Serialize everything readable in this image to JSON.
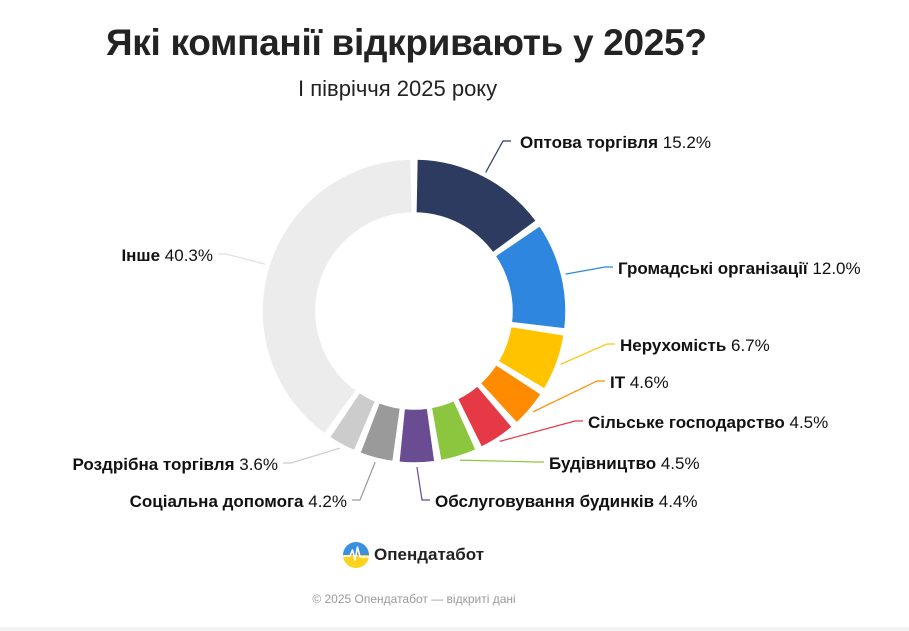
{
  "header": {
    "title": "Які компанії відкривають у 2025?",
    "subtitle": "І півріччя 2025 року"
  },
  "chart_data": {
    "type": "pie",
    "variant": "donut",
    "unit": "%",
    "slices": [
      {
        "label": "Оптова торгівля",
        "value": 15.2,
        "display": "15.2%",
        "color": "#2c3b5f"
      },
      {
        "label": "Громадські організації",
        "value": 12.0,
        "display": "12.0%",
        "color": "#2e86de"
      },
      {
        "label": "Нерухомість",
        "value": 6.7,
        "display": "6.7%",
        "color": "#ffc300"
      },
      {
        "label": "ІТ",
        "value": 4.6,
        "display": "4.6%",
        "color": "#ff8c00"
      },
      {
        "label": "Сільське господарство",
        "value": 4.5,
        "display": "4.5%",
        "color": "#e63946"
      },
      {
        "label": "Будівництво",
        "value": 4.5,
        "display": "4.5%",
        "color": "#8cc63f"
      },
      {
        "label": "Обслуговування будинків",
        "value": 4.4,
        "display": "4.4%",
        "color": "#6a4c93"
      },
      {
        "label": "Соціальна допомога",
        "value": 4.2,
        "display": "4.2%",
        "color": "#9a9a9a"
      },
      {
        "label": "Роздрібна торгівля",
        "value": 3.6,
        "display": "3.6%",
        "color": "#cccccc"
      },
      {
        "label": "Інше",
        "value": 40.3,
        "display": "40.3%",
        "color": "#ececec"
      }
    ]
  },
  "brand": {
    "name": "Опендатабот",
    "icon": "opendatabot-logo-icon"
  },
  "footer": {
    "text": "© 2025 Опендатабот — відкриті дані"
  }
}
